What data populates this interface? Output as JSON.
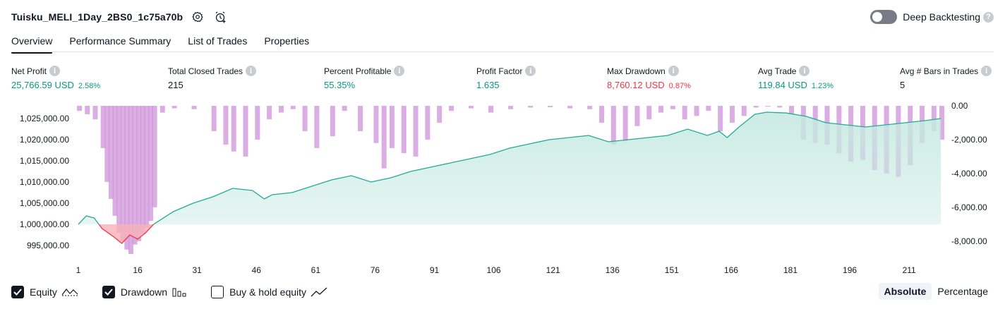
{
  "header": {
    "strategy_name": "Tuisku_MELI_1Day_2BS0_1c75a70b",
    "settings_icon": "gear-icon",
    "add_alert_icon": "alarm-clock-plus-icon"
  },
  "deep_backtesting": {
    "label": "Deep Backtesting",
    "enabled": false,
    "help": "?"
  },
  "tabs": [
    {
      "label": "Overview",
      "active": true
    },
    {
      "label": "Performance Summary",
      "active": false
    },
    {
      "label": "List of Trades",
      "active": false
    },
    {
      "label": "Properties",
      "active": false
    }
  ],
  "metrics": [
    {
      "label": "Net Profit",
      "value": "25,766.59 USD",
      "pct": "2.58%",
      "color": "#089981"
    },
    {
      "label": "Total Closed Trades",
      "value": "215",
      "pct": "",
      "color": "#131722"
    },
    {
      "label": "Percent Profitable",
      "value": "55.35%",
      "pct": "",
      "color": "#089981"
    },
    {
      "label": "Profit Factor",
      "value": "1.635",
      "pct": "",
      "color": "#089981"
    },
    {
      "label": "Max Drawdown",
      "value": "8,760.12 USD",
      "pct": "0.87%",
      "color": "#f23645"
    },
    {
      "label": "Avg Trade",
      "value": "119.84 USD",
      "pct": "1.23%",
      "color": "#089981"
    },
    {
      "label": "Avg # Bars in Trades",
      "value": "5",
      "pct": "",
      "color": "#131722"
    }
  ],
  "legend": {
    "equity": {
      "label": "Equity",
      "checked": true
    },
    "drawdown": {
      "label": "Drawdown",
      "checked": true
    },
    "buy_hold": {
      "label": "Buy & hold equity",
      "checked": false
    }
  },
  "mode": {
    "absolute": "Absolute",
    "percentage": "Percentage",
    "selected": "Absolute"
  },
  "chart_data": {
    "type": "area",
    "x_ticks": [
      "1",
      "16",
      "31",
      "46",
      "61",
      "76",
      "91",
      "106",
      "121",
      "136",
      "151",
      "166",
      "181",
      "196",
      "211"
    ],
    "y_left_ticks": [
      "1,025,000.00",
      "1,020,000.00",
      "1,015,000.00",
      "1,010,000.00",
      "1,005,000.00",
      "1,000,000.00",
      "995,000.00"
    ],
    "y_left_range": [
      993000,
      1028000
    ],
    "y_right_ticks": [
      "0.00",
      "-2,000.00",
      "-4,000.00",
      "-6,000.00",
      "-8,000.00"
    ],
    "y_right_range": [
      -8760,
      0
    ],
    "baseline": 1000000,
    "colors": {
      "equity_line": "#22ab94",
      "equity_fill": "#c6e9e1",
      "loss_line": "#f23645",
      "loss_fill": "#f7b2b8",
      "drawdown": "#ce93d8"
    },
    "series": [
      {
        "name": "Equity",
        "x": [
          1,
          3,
          5,
          7,
          10,
          12,
          14,
          16,
          18,
          20,
          25,
          30,
          35,
          40,
          45,
          48,
          50,
          55,
          60,
          65,
          70,
          75,
          80,
          85,
          90,
          95,
          100,
          105,
          110,
          115,
          120,
          125,
          130,
          135,
          140,
          145,
          150,
          155,
          160,
          163,
          165,
          168,
          172,
          175,
          180,
          185,
          190,
          195,
          200,
          205,
          210,
          215,
          219
        ],
        "values": [
          1000000,
          1002000,
          1001500,
          999000,
          997000,
          995500,
          997500,
          996500,
          998000,
          1000000,
          1003000,
          1005000,
          1006500,
          1008500,
          1008000,
          1006000,
          1007000,
          1007500,
          1009000,
          1010500,
          1011500,
          1010000,
          1011000,
          1012500,
          1013500,
          1014500,
          1015500,
          1016500,
          1018000,
          1019000,
          1020000,
          1020500,
          1021000,
          1019500,
          1020000,
          1020500,
          1021000,
          1022500,
          1021000,
          1022000,
          1020500,
          1023000,
          1026000,
          1026500,
          1026300,
          1025500,
          1024000,
          1023500,
          1023000,
          1023500,
          1024000,
          1024500,
          1025000
        ]
      },
      {
        "name": "Drawdown",
        "x": [
          1,
          3,
          5,
          7,
          8,
          9,
          10,
          11,
          12,
          13,
          14,
          15,
          16,
          17,
          18,
          19,
          20,
          22,
          25,
          30,
          35,
          38,
          40,
          43,
          46,
          49,
          52,
          55,
          58,
          61,
          65,
          68,
          72,
          76,
          78,
          80,
          83,
          86,
          89,
          92,
          95,
          100,
          105,
          110,
          115,
          120,
          125,
          130,
          133,
          136,
          139,
          142,
          145,
          148,
          151,
          154,
          157,
          160,
          163,
          166,
          169,
          172,
          175,
          178,
          181,
          184,
          187,
          190,
          193,
          196,
          199,
          202,
          205,
          208,
          211,
          214,
          217,
          219
        ],
        "values": [
          -300,
          -500,
          -800,
          -2500,
          -4500,
          -5500,
          -6500,
          -7500,
          -8000,
          -8500,
          -8760,
          -8200,
          -8000,
          -7600,
          -7200,
          -6800,
          -6000,
          -400,
          -150,
          -200,
          -1500,
          -2300,
          -2700,
          -3000,
          -2000,
          -800,
          -400,
          -200,
          -1500,
          -2500,
          -1800,
          -300,
          -1500,
          -2200,
          -3700,
          -2500,
          -2800,
          -3000,
          -2000,
          -1000,
          -300,
          -150,
          -400,
          -200,
          -100,
          -80,
          -150,
          -200,
          -1000,
          -2300,
          -2100,
          -1200,
          -800,
          -400,
          -200,
          -800,
          -600,
          -300,
          -1500,
          -1000,
          -600,
          -100,
          -50,
          -100,
          -500,
          -2000,
          -2200,
          -2300,
          -2800,
          -3300,
          -3200,
          -3800,
          -4000,
          -4200,
          -3500,
          -2200,
          -1500,
          -2000
        ]
      }
    ]
  }
}
